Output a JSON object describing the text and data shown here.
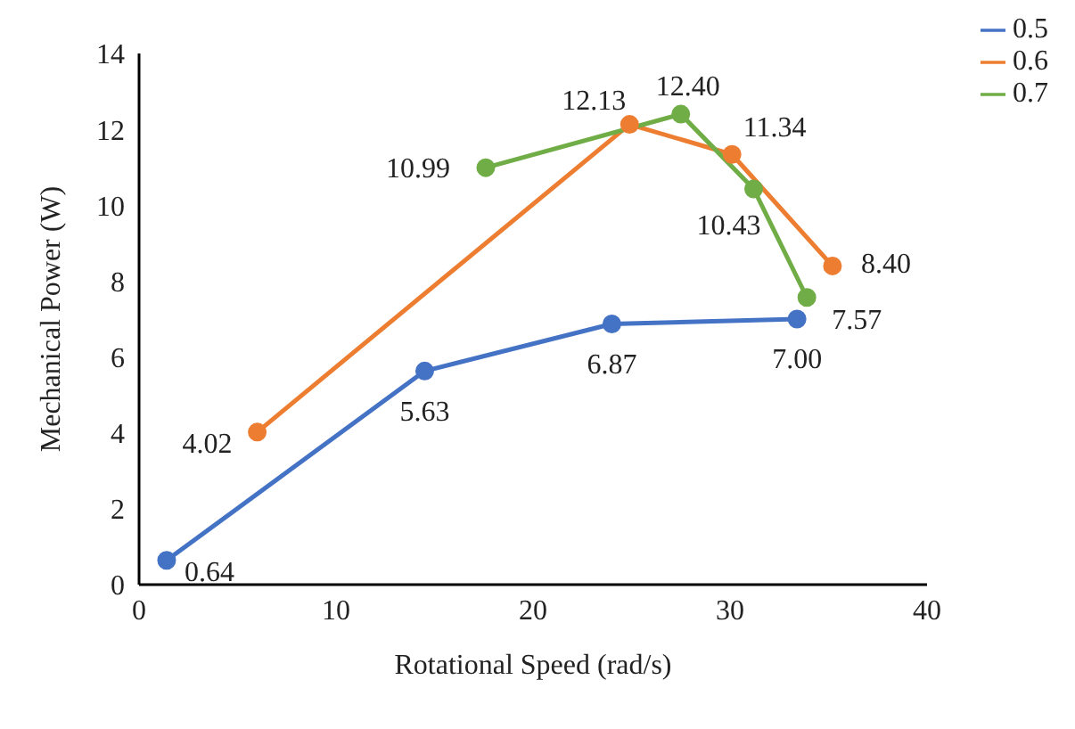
{
  "chart_data": {
    "type": "line",
    "xlabel": "Rotational Speed (rad/s)",
    "ylabel": "Mechanical Power (W)",
    "xlim": [
      0,
      40
    ],
    "xticks": [
      0,
      10,
      20,
      30,
      40
    ],
    "ylim": [
      0,
      14
    ],
    "yticks": [
      0,
      2,
      4,
      6,
      8,
      10,
      12,
      14
    ],
    "grid": false,
    "legend": "top right",
    "marker": "circle",
    "series": [
      {
        "name": "0.5",
        "color": "#4472c4",
        "x": [
          1.4,
          14.5,
          24.0,
          33.4
        ],
        "values": [
          0.64,
          5.63,
          6.87,
          7.0
        ],
        "value_labels": [
          "0.64",
          "5.63",
          "6.87",
          "7.00"
        ]
      },
      {
        "name": "0.6",
        "color": "#ed7d31",
        "x": [
          6.0,
          24.9,
          30.1,
          35.2
        ],
        "values": [
          4.02,
          12.13,
          11.34,
          8.4
        ],
        "value_labels": [
          "4.02",
          "12.13",
          "11.34",
          "8.40"
        ]
      },
      {
        "name": "0.7",
        "color": "#70ad47",
        "x": [
          17.6,
          27.5,
          31.2,
          33.9
        ],
        "values": [
          10.99,
          12.4,
          10.43,
          7.57
        ],
        "value_labels": [
          "10.99",
          "12.40",
          "10.43",
          "7.57"
        ]
      }
    ]
  }
}
